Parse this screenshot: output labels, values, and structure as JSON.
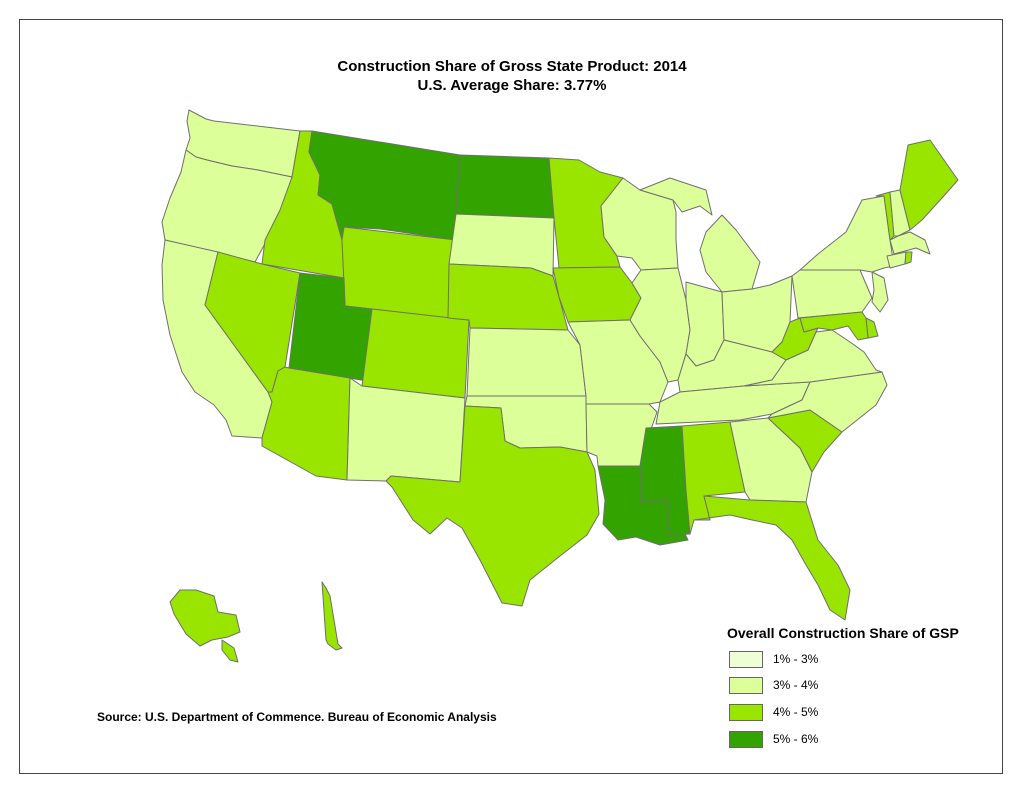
{
  "title": "Construction Share of Gross State Product: 2014",
  "subtitle": "U.S. Average Share: 3.77%",
  "legend": {
    "title": "Overall Construction Share of GSP",
    "items": [
      {
        "label": "1% - 3%",
        "color": "#eeffd6"
      },
      {
        "label": "3% - 4%",
        "color": "#ddff99"
      },
      {
        "label": "4% - 5%",
        "color": "#99e500"
      },
      {
        "label": "5% - 6%",
        "color": "#33a300"
      }
    ]
  },
  "source": "Source: U.S. Department of Commence. Bureau of Economic Analysis",
  "state_share_bracket": {
    "WA": "3% - 4%",
    "OR": "3% - 4%",
    "CA": "3% - 4%",
    "ID": "4% - 5%",
    "NV": "4% - 5%",
    "MT": "5% - 6%",
    "WY": "4% - 5%",
    "UT": "5% - 6%",
    "AZ": "4% - 5%",
    "CO": "4% - 5%",
    "NM": "3% - 4%",
    "ND": "5% - 6%",
    "SD": "3% - 4%",
    "NE": "4% - 5%",
    "KS": "3% - 4%",
    "OK": "3% - 4%",
    "TX": "4% - 5%",
    "MN": "4% - 5%",
    "IA": "4% - 5%",
    "MO": "3% - 4%",
    "AR": "3% - 4%",
    "LA": "5% - 6%",
    "WI": "3% - 4%",
    "IL": "3% - 4%",
    "MI": "3% - 4%",
    "IN": "3% - 4%",
    "OH": "3% - 4%",
    "KY": "3% - 4%",
    "TN": "3% - 4%",
    "MS": "5% - 6%",
    "AL": "4% - 5%",
    "GA": "3% - 4%",
    "FL": "4% - 5%",
    "SC": "4% - 5%",
    "NC": "3% - 4%",
    "VA": "3% - 4%",
    "WV": "4% - 5%",
    "PA": "3% - 4%",
    "NY": "3% - 4%",
    "VT": "4% - 5%",
    "NH": "3% - 4%",
    "ME": "4% - 5%",
    "MA": "3% - 4%",
    "CT": "3% - 4%",
    "RI": "4% - 5%",
    "NJ": "3% - 4%",
    "DE": "4% - 5%",
    "MD": "4% - 5%",
    "AK": "4% - 5%",
    "HI": "4% - 5%"
  }
}
